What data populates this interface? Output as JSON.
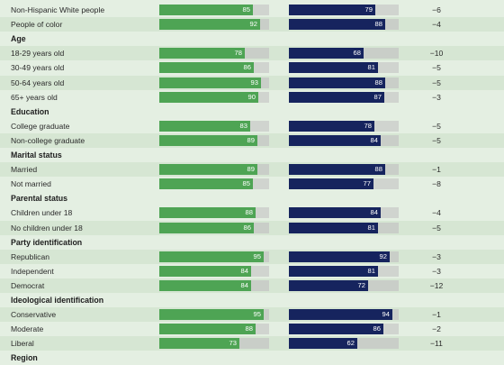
{
  "colors": {
    "series_1": "#4ea454",
    "series_2": "#16245e",
    "track": "#d0d4cf",
    "background": "#e4efe2"
  },
  "chart_data": {
    "type": "bar",
    "xlim": [
      0,
      100
    ],
    "rows": [
      {
        "kind": "item",
        "label": "Non-Hispanic White people",
        "v1": 85,
        "v2": 79,
        "diff": "−6"
      },
      {
        "kind": "item",
        "label": "People of color",
        "v1": 92,
        "v2": 88,
        "diff": "−4"
      },
      {
        "kind": "header",
        "label": "Age"
      },
      {
        "kind": "item",
        "label": "18-29 years old",
        "v1": 78,
        "v2": 68,
        "diff": "−10"
      },
      {
        "kind": "item",
        "label": "30-49 years old",
        "v1": 86,
        "v2": 81,
        "diff": "−5"
      },
      {
        "kind": "item",
        "label": "50-64 years old",
        "v1": 93,
        "v2": 88,
        "diff": "−5"
      },
      {
        "kind": "item",
        "label": "65+ years old",
        "v1": 90,
        "v2": 87,
        "diff": "−3"
      },
      {
        "kind": "header",
        "label": "Education"
      },
      {
        "kind": "item",
        "label": "College graduate",
        "v1": 83,
        "v2": 78,
        "diff": "−5"
      },
      {
        "kind": "item",
        "label": "Non-college graduate",
        "v1": 89,
        "v2": 84,
        "diff": "−5"
      },
      {
        "kind": "header",
        "label": "Marital status"
      },
      {
        "kind": "item",
        "label": "Married",
        "v1": 89,
        "v2": 88,
        "diff": "−1"
      },
      {
        "kind": "item",
        "label": "Not married",
        "v1": 85,
        "v2": 77,
        "diff": "−8"
      },
      {
        "kind": "header",
        "label": "Parental status"
      },
      {
        "kind": "item",
        "label": "Children under 18",
        "v1": 88,
        "v2": 84,
        "diff": "−4"
      },
      {
        "kind": "item",
        "label": "No children under 18",
        "v1": 86,
        "v2": 81,
        "diff": "−5"
      },
      {
        "kind": "header",
        "label": "Party identification"
      },
      {
        "kind": "item",
        "label": "Republican",
        "v1": 95,
        "v2": 92,
        "diff": "−3"
      },
      {
        "kind": "item",
        "label": "Independent",
        "v1": 84,
        "v2": 81,
        "diff": "−3"
      },
      {
        "kind": "item",
        "label": "Democrat",
        "v1": 84,
        "v2": 72,
        "diff": "−12"
      },
      {
        "kind": "header",
        "label": "Ideological identification"
      },
      {
        "kind": "item",
        "label": "Conservative",
        "v1": 95,
        "v2": 94,
        "diff": "−1"
      },
      {
        "kind": "item",
        "label": "Moderate",
        "v1": 88,
        "v2": 86,
        "diff": "−2"
      },
      {
        "kind": "item",
        "label": "Liberal",
        "v1": 73,
        "v2": 62,
        "diff": "−11"
      },
      {
        "kind": "header",
        "label": "Region"
      }
    ]
  }
}
